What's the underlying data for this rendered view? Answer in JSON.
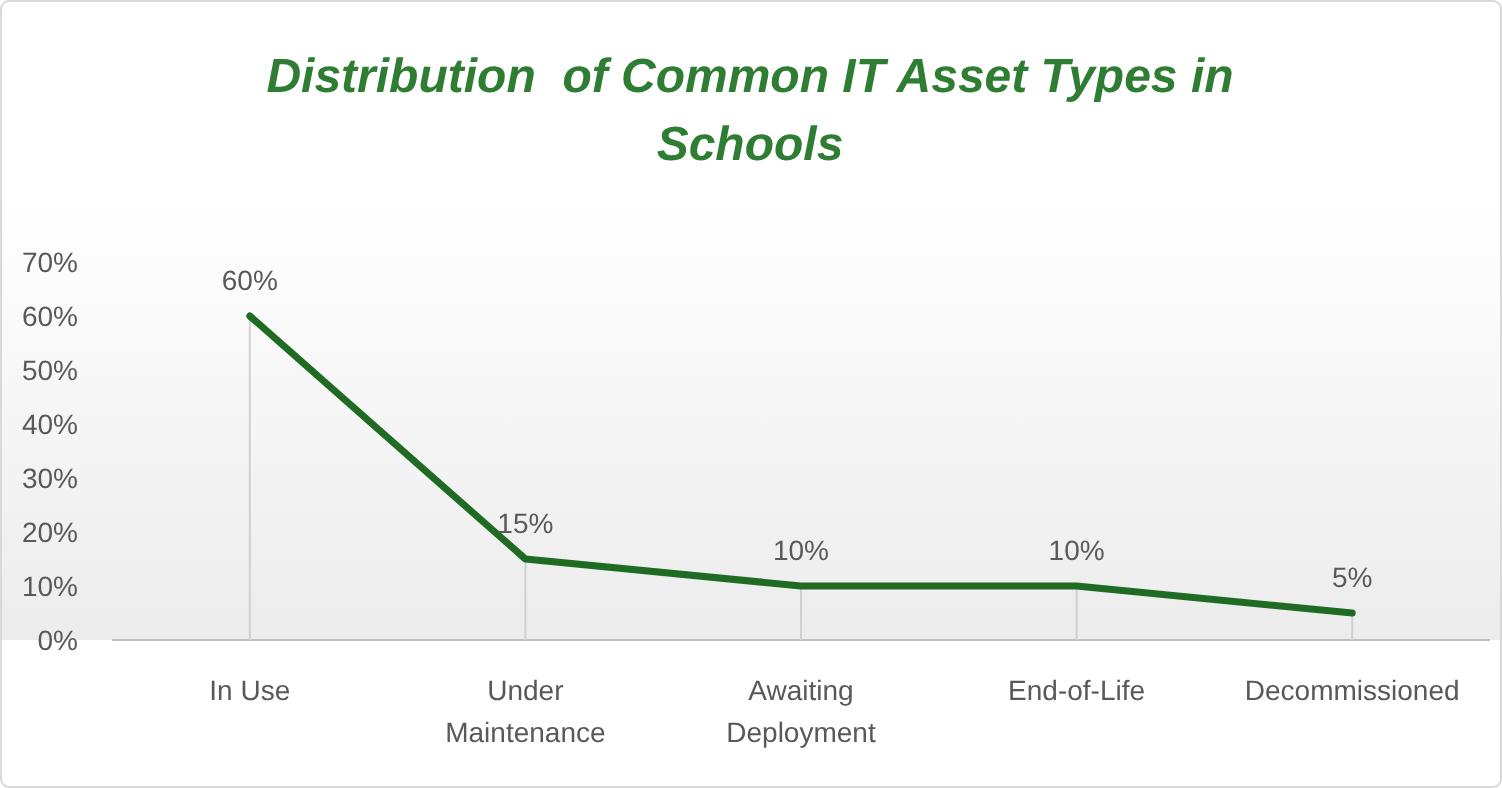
{
  "chart_data": {
    "type": "line",
    "title": "Distribution  of Common IT Asset Types in Schools",
    "categories": [
      "In Use",
      "Under Maintenance",
      "Awaiting Deployment",
      "End-of-Life",
      "Decommissioned"
    ],
    "series": [
      {
        "color": "#1f6b24",
        "values": [
          60,
          15,
          10,
          10,
          5
        ],
        "value_labels": [
          "60%",
          "15%",
          "10%",
          "10%",
          "5%"
        ]
      }
    ],
    "ylim": [
      0,
      70
    ],
    "yticks": [
      {
        "value": 0,
        "label": "0%"
      },
      {
        "value": 10,
        "label": "10%"
      },
      {
        "value": 20,
        "label": "20%"
      },
      {
        "value": 30,
        "label": "30%"
      },
      {
        "value": 40,
        "label": "40%"
      },
      {
        "value": 50,
        "label": "50%"
      },
      {
        "value": 60,
        "label": "60%"
      },
      {
        "value": 70,
        "label": "70%"
      }
    ],
    "grid": "x",
    "marker": "none",
    "line_style": "solid"
  }
}
